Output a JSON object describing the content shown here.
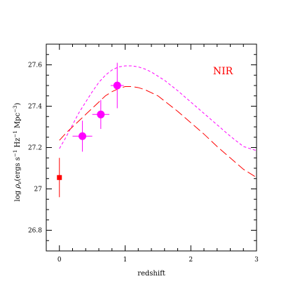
{
  "chart_data": {
    "type": "scatter",
    "title": "",
    "xlabel": "redshift",
    "ylabel_parts": {
      "prefix": "log ",
      "rho": "ρ",
      "sub": "ν",
      "open": "(ergs s",
      "exp1": "−1",
      "hz": " Hz",
      "exp2": "−1",
      "mpc": " Mpc",
      "exp3": "−3",
      "close": ")"
    },
    "xlim": [
      -0.2,
      3
    ],
    "ylim": [
      26.7,
      27.7
    ],
    "xticks": [
      0,
      1,
      2,
      3
    ],
    "xtick_labels": [
      "0",
      "1",
      "2",
      "3"
    ],
    "yticks": [
      26.8,
      27,
      27.2,
      27.4,
      27.6
    ],
    "ytick_labels": [
      "26.8",
      "27",
      "27.2",
      "27.4",
      "27.6"
    ],
    "annotation": "NIR",
    "colors": {
      "magenta": "#ff00ff",
      "red": "#ff0000",
      "frame": "#000000"
    },
    "points_magenta": [
      {
        "x": 0.35,
        "y": 27.255,
        "xerr": 0.15,
        "yerr": 0.075
      },
      {
        "x": 0.63,
        "y": 27.36,
        "xerr": 0.13,
        "yerr": 0.07
      },
      {
        "x": 0.88,
        "y": 27.5,
        "xerr": 0.1,
        "yerr": 0.11
      }
    ],
    "points_red": [
      {
        "x": 0.0,
        "y": 27.055,
        "yerr": 0.095
      }
    ],
    "curve_magenta_short_dash": {
      "x": [
        0,
        0.1,
        0.2,
        0.3,
        0.4,
        0.5,
        0.6,
        0.7,
        0.8,
        0.9,
        1.0,
        1.1,
        1.2,
        1.3,
        1.4,
        1.5,
        1.6,
        1.8,
        2.0,
        2.2,
        2.4,
        2.6,
        2.8,
        3.0
      ],
      "y": [
        27.195,
        27.25,
        27.31,
        27.37,
        27.42,
        27.47,
        27.515,
        27.55,
        27.575,
        27.59,
        27.595,
        27.595,
        27.59,
        27.58,
        27.565,
        27.545,
        27.525,
        27.475,
        27.42,
        27.365,
        27.31,
        27.255,
        27.205,
        27.185
      ]
    },
    "curve_red_long_dash": {
      "x": [
        0,
        0.1,
        0.2,
        0.3,
        0.4,
        0.5,
        0.6,
        0.7,
        0.8,
        0.9,
        1.0,
        1.1,
        1.2,
        1.3,
        1.4,
        1.5,
        1.6,
        1.8,
        2.0,
        2.2,
        2.4,
        2.6,
        2.8,
        3.0
      ],
      "y": [
        27.235,
        27.27,
        27.3,
        27.33,
        27.36,
        27.39,
        27.42,
        27.45,
        27.47,
        27.485,
        27.495,
        27.495,
        27.49,
        27.48,
        27.465,
        27.45,
        27.425,
        27.375,
        27.32,
        27.265,
        27.205,
        27.15,
        27.095,
        27.055
      ]
    }
  }
}
